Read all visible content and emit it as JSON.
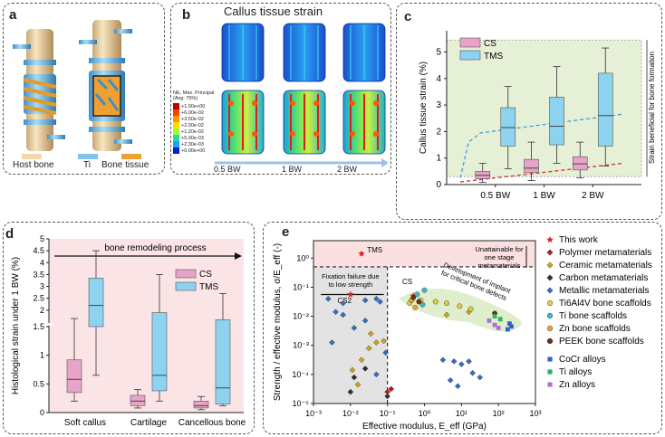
{
  "panel_a": {
    "label": "a",
    "legend": [
      {
        "name": "Host bone",
        "color": "#f3d9a8"
      },
      {
        "name": "Ti",
        "color": "#7ec4ea"
      },
      {
        "name": "Bone tissue",
        "color": "#f0a030"
      }
    ]
  },
  "panel_b": {
    "label": "b",
    "title": "Callus tissue strain",
    "colorbar_title": [
      "NE, Max. Principal",
      "(Avg: 75%)"
    ],
    "colorbar_ticks": [
      "+1.00e+00",
      "+6.00e-02",
      "+3.50e-02",
      "+2.00e-02",
      "+1.20e-02",
      "+5.00e-03",
      "+2.30e-03",
      "+0.00e+00"
    ],
    "colorbar_colors": [
      "#c00000",
      "#ff4000",
      "#ff9900",
      "#ffe000",
      "#a0ff30",
      "#20e0a0",
      "#20a0ff",
      "#0020d0"
    ],
    "loads": [
      "0.5 BW",
      "1 BW",
      "2 BW"
    ]
  },
  "chart_data": [
    {
      "type": "box",
      "id": "c",
      "label": "c",
      "ylabel": "Callus tissue strain (%)",
      "ylim": [
        0,
        5.8
      ],
      "yticks": [
        "0",
        "1",
        "2",
        "3",
        "4",
        "5"
      ],
      "categories": [
        "0.5 BW",
        "1 BW",
        "2 BW"
      ],
      "band_label": "Strain beneficial for bone formation",
      "band": [
        0.3,
        5.45
      ],
      "series": [
        {
          "name": "CS",
          "color": "#e8a4c8",
          "boxes": [
            {
              "min": 0.08,
              "q1": 0.22,
              "median": 0.35,
              "q3": 0.5,
              "max": 0.8
            },
            {
              "min": 0.15,
              "q1": 0.45,
              "median": 0.62,
              "q3": 0.95,
              "max": 1.6
            },
            {
              "min": 0.25,
              "q1": 0.55,
              "median": 0.78,
              "q3": 1.05,
              "max": 1.6
            }
          ]
        },
        {
          "name": "TMS",
          "color": "#8dd3ef",
          "boxes": [
            {
              "min": 0.6,
              "q1": 1.45,
              "median": 2.15,
              "q3": 2.9,
              "max": 3.7
            },
            {
              "min": 0.8,
              "q1": 1.5,
              "median": 2.2,
              "q3": 3.3,
              "max": 4.45
            },
            {
              "min": 0.7,
              "q1": 1.45,
              "median": 2.6,
              "q3": 4.2,
              "max": 5.15
            }
          ]
        }
      ],
      "trend_tms": [
        [
          0.28,
          0.25
        ],
        [
          0.45,
          1.6
        ],
        [
          0.7,
          1.95
        ],
        [
          3.6,
          2.65
        ]
      ],
      "trend_cs": [
        [
          0.28,
          0.1
        ],
        [
          3.6,
          0.8
        ]
      ]
    },
    {
      "type": "box",
      "id": "d",
      "label": "d",
      "ylabel": "Histological strain under 1 BW (%)",
      "yticks": [
        "0",
        "0.5",
        "1",
        "1.5",
        "2",
        "2.5",
        "3",
        "3.5",
        "4",
        "4.5",
        "5"
      ],
      "categories": [
        "Soft callus",
        "Cartilage",
        "Cancellous bone"
      ],
      "arrow_label": "bone remodeling process",
      "series": [
        {
          "name": "CS",
          "color": "#e8a4c8",
          "boxes": [
            {
              "min": 0.2,
              "q1": 0.35,
              "median": 0.58,
              "q3": 0.92,
              "max": 1.65
            },
            {
              "min": 0.08,
              "q1": 0.12,
              "median": 0.2,
              "q3": 0.3,
              "max": 0.4
            },
            {
              "min": 0.05,
              "q1": 0.08,
              "median": 0.12,
              "q3": 0.2,
              "max": 0.28
            }
          ]
        },
        {
          "name": "TMS",
          "color": "#8dd3ef",
          "boxes": [
            {
              "min": 0.65,
              "q1": 1.5,
              "median": 2.2,
              "q3": 3.35,
              "max": 4.5
            },
            {
              "min": 0.2,
              "q1": 0.38,
              "median": 0.65,
              "q3": 1.9,
              "max": 3.5
            },
            {
              "min": 0.12,
              "q1": 0.15,
              "median": 0.43,
              "q3": 1.6,
              "max": 2.7
            }
          ]
        }
      ]
    },
    {
      "type": "scatter",
      "id": "e",
      "label": "e",
      "xlabel": "Effective modulus, E_eff (GPa)",
      "ylabel": "Strength / effective modulus, σ/E_eff (-)",
      "xlim_log10": [
        -3,
        3
      ],
      "ylim_log10": [
        -5,
        0.6
      ],
      "xticks": [
        "10⁻³",
        "10⁻²",
        "10⁻¹",
        "10⁰",
        "10¹",
        "10²",
        "10³"
      ],
      "yticks": [
        "10⁻⁵",
        "10⁻⁴",
        "10⁻³",
        "10⁻²",
        "10⁻¹",
        "10⁰"
      ],
      "annotations": {
        "unattainable": [
          "Unattainable for",
          "one stage",
          "metamaterials"
        ],
        "fixation": [
          "Fixation failure due",
          "to low strength"
        ],
        "development": [
          "Development of implant",
          "for critical bone defects"
        ],
        "tms": "TMS",
        "cs": "CS",
        "cs2": "CS2"
      },
      "legend": [
        {
          "name": "This work",
          "marker": "star",
          "color": "#e02020"
        },
        {
          "name": "Polymer metamaterials",
          "marker": "diamond",
          "color": "#c01818"
        },
        {
          "name": "Ceramic metamaterials",
          "marker": "diamond",
          "color": "#d4a020"
        },
        {
          "name": "Carbon metamaterials",
          "marker": "diamond",
          "color": "#303030"
        },
        {
          "name": "Metallic metamaterials",
          "marker": "diamond",
          "color": "#3070c8"
        },
        {
          "name": "Ti6Al4V bone scaffolds",
          "marker": "circle",
          "color": "#e8c840"
        },
        {
          "name": "Ti bone scaffolds",
          "marker": "circle",
          "color": "#40b8c8"
        },
        {
          "name": "Zn bone scaffolds",
          "marker": "circle",
          "color": "#f0a030"
        },
        {
          "name": "PEEK bone scaffolds",
          "marker": "circle",
          "color": "#6a3018"
        },
        {
          "name": "CoCr alloys",
          "marker": "square",
          "color": "#3060d0"
        },
        {
          "name": "Ti alloys",
          "marker": "square",
          "color": "#30b060"
        },
        {
          "name": "Zn alloys",
          "marker": "square",
          "color": "#b070d0"
        }
      ],
      "points": [
        {
          "series": "This work",
          "x": -0.3,
          "y": -1.3
        },
        {
          "series": "This work",
          "x": -1.7,
          "y": 0.15
        },
        {
          "series": "This work",
          "x": -2.0,
          "y": -1.25
        },
        {
          "series": "Metallic metamaterials",
          "x": -2.6,
          "y": -1.4
        },
        {
          "series": "Metallic metamaterials",
          "x": -2.2,
          "y": -1.55
        },
        {
          "series": "Metallic metamaterials",
          "x": -1.6,
          "y": -1.45
        },
        {
          "series": "Metallic metamaterials",
          "x": -1.3,
          "y": -1.4
        },
        {
          "series": "Metallic metamaterials",
          "x": -1.2,
          "y": -1.5
        },
        {
          "series": "Metallic metamaterials",
          "x": -2.4,
          "y": -1.85
        },
        {
          "series": "Metallic metamaterials",
          "x": -2.2,
          "y": -1.95
        },
        {
          "series": "Metallic metamaterials",
          "x": -1.9,
          "y": -2.4
        },
        {
          "series": "Metallic metamaterials",
          "x": -2.5,
          "y": -2.9
        },
        {
          "series": "Metallic metamaterials",
          "x": -1.6,
          "y": -2.15
        },
        {
          "series": "Metallic metamaterials",
          "x": -1.05,
          "y": -3.25
        },
        {
          "series": "Metallic metamaterials",
          "x": -1.3,
          "y": -4.0
        },
        {
          "series": "Metallic metamaterials",
          "x": 0.5,
          "y": -3.5
        },
        {
          "series": "Metallic metamaterials",
          "x": 0.8,
          "y": -3.55
        },
        {
          "series": "Metallic metamaterials",
          "x": 1.0,
          "y": -3.65
        },
        {
          "series": "Metallic metamaterials",
          "x": 1.2,
          "y": -3.55
        },
        {
          "series": "Metallic metamaterials",
          "x": 1.3,
          "y": -3.95
        },
        {
          "series": "Metallic metamaterials",
          "x": 1.5,
          "y": -4.1
        },
        {
          "series": "Metallic metamaterials",
          "x": 0.9,
          "y": -4.4
        },
        {
          "series": "Metallic metamaterials",
          "x": 0.7,
          "y": -4.2
        },
        {
          "series": "Ceramic metamaterials",
          "x": -1.95,
          "y": -3.85
        },
        {
          "series": "Ceramic metamaterials",
          "x": -1.8,
          "y": -4.35
        },
        {
          "series": "Ceramic metamaterials",
          "x": -1.7,
          "y": -3.5
        },
        {
          "series": "Ceramic metamaterials",
          "x": -1.5,
          "y": -3.1
        },
        {
          "series": "Ceramic metamaterials",
          "x": -1.45,
          "y": -2.6
        },
        {
          "series": "Ceramic metamaterials",
          "x": -1.1,
          "y": -2.85
        },
        {
          "series": "Ceramic metamaterials",
          "x": -1.3,
          "y": -2.9
        },
        {
          "series": "Ceramic metamaterials",
          "x": 0.6,
          "y": -1.95
        },
        {
          "series": "Ceramic metamaterials",
          "x": 1.2,
          "y": -1.85
        },
        {
          "series": "Carbon metamaterials",
          "x": -2.0,
          "y": -4.6
        },
        {
          "series": "Carbon metamaterials",
          "x": -1.9,
          "y": -4.1
        },
        {
          "series": "Carbon metamaterials",
          "x": -1.6,
          "y": -3.8
        },
        {
          "series": "Carbon metamaterials",
          "x": -1.0,
          "y": -4.75
        },
        {
          "series": "Polymer metamaterials",
          "x": -1.0,
          "y": -4.6
        },
        {
          "series": "Polymer metamaterials",
          "x": -0.9,
          "y": -4.5
        },
        {
          "series": "Ti6Al4V bone scaffolds",
          "x": -0.4,
          "y": -1.55
        },
        {
          "series": "Ti6Al4V bone scaffolds",
          "x": -0.1,
          "y": -1.45
        },
        {
          "series": "Ti6Al4V bone scaffolds",
          "x": 0.3,
          "y": -1.5
        },
        {
          "series": "Ti6Al4V bone scaffolds",
          "x": 0.6,
          "y": -1.55
        },
        {
          "series": "Ti6Al4V bone scaffolds",
          "x": 0.95,
          "y": -1.65
        },
        {
          "series": "Ti6Al4V bone scaffolds",
          "x": 1.25,
          "y": -1.75
        },
        {
          "series": "Ti bone scaffolds",
          "x": -0.2,
          "y": -1.25
        },
        {
          "series": "Ti bone scaffolds",
          "x": 0.0,
          "y": -1.1
        },
        {
          "series": "Ti bone scaffolds",
          "x": -0.05,
          "y": -1.6
        },
        {
          "series": "Zn bone scaffolds",
          "x": -0.35,
          "y": -1.45
        },
        {
          "series": "Zn bone scaffolds",
          "x": -0.25,
          "y": -1.7
        },
        {
          "series": "PEEK bone scaffolds",
          "x": -0.3,
          "y": -1.35
        },
        {
          "series": "PEEK bone scaffolds",
          "x": -0.15,
          "y": -1.5
        },
        {
          "series": "PEEK bone scaffolds",
          "x": 1.9,
          "y": -1.9
        },
        {
          "series": "CoCr alloys",
          "x": 2.3,
          "y": -2.25
        },
        {
          "series": "CoCr alloys",
          "x": 2.35,
          "y": -2.35
        },
        {
          "series": "CoCr alloys",
          "x": 2.25,
          "y": -2.45
        },
        {
          "series": "Ti alloys",
          "x": 1.9,
          "y": -2.0
        },
        {
          "series": "Ti alloys",
          "x": 2.05,
          "y": -2.1
        },
        {
          "series": "Zn alloys",
          "x": 1.75,
          "y": -2.15
        },
        {
          "series": "Zn alloys",
          "x": 1.9,
          "y": -2.3
        },
        {
          "series": "Zn alloys",
          "x": 2.0,
          "y": -2.4
        }
      ]
    }
  ]
}
